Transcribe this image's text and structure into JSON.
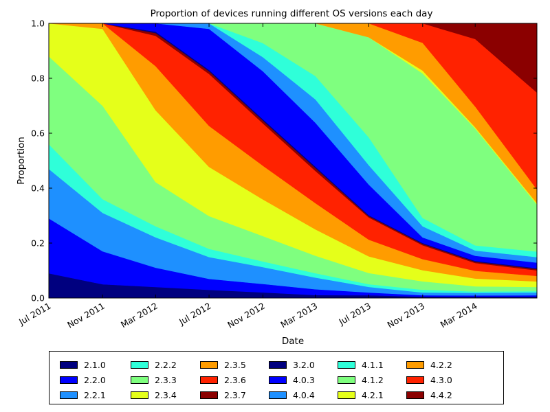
{
  "chart_data": {
    "type": "area",
    "stacked": true,
    "normalized": true,
    "title": "Proportion of devices running different OS versions each day",
    "xlabel": "Date",
    "ylabel": "Proportion",
    "ylim": [
      0,
      1.0
    ],
    "xlim": [
      "2011-07-01",
      "2014-07-20"
    ],
    "x_ticks": [
      "Jul 2011",
      "Nov 2011",
      "Mar 2012",
      "Jul 2012",
      "Nov 2012",
      "Mar 2013",
      "Jul 2013",
      "Nov 2013",
      "Mar 2014"
    ],
    "y_ticks": [
      "0.0",
      "0.2",
      "0.4",
      "0.6",
      "0.8",
      "1.0"
    ],
    "legend_position": "below",
    "x": [
      "2011-07-01",
      "2011-11-01",
      "2012-03-01",
      "2012-07-01",
      "2012-11-01",
      "2013-03-01",
      "2013-07-01",
      "2013-11-01",
      "2014-03-01",
      "2014-07-20"
    ],
    "series": [
      {
        "name": "2.1.0",
        "color": "#00007f",
        "values": [
          0.09,
          0.05,
          0.04,
          0.03,
          0.02,
          0.01,
          0.01,
          0.005,
          0.005,
          0.005
        ]
      },
      {
        "name": "2.2.0",
        "color": "#0000ff",
        "values": [
          0.2,
          0.12,
          0.07,
          0.04,
          0.03,
          0.02,
          0.01,
          0.005,
          0.005,
          0.005
        ]
      },
      {
        "name": "2.2.1",
        "color": "#1e90ff",
        "values": [
          0.18,
          0.14,
          0.11,
          0.08,
          0.06,
          0.04,
          0.02,
          0.01,
          0.01,
          0.01
        ]
      },
      {
        "name": "2.2.2",
        "color": "#2fffd9",
        "values": [
          0.09,
          0.05,
          0.04,
          0.03,
          0.02,
          0.015,
          0.01,
          0.01,
          0.005,
          0.005
        ]
      },
      {
        "name": "2.3.3",
        "color": "#7fff7f",
        "values": [
          0.32,
          0.34,
          0.16,
          0.12,
          0.09,
          0.06,
          0.04,
          0.03,
          0.02,
          0.015
        ]
      },
      {
        "name": "2.3.4",
        "color": "#e5ff1a",
        "values": [
          0.12,
          0.28,
          0.26,
          0.18,
          0.13,
          0.09,
          0.06,
          0.04,
          0.03,
          0.02
        ]
      },
      {
        "name": "2.3.5",
        "color": "#ff9c00",
        "values": [
          0.0,
          0.02,
          0.16,
          0.15,
          0.12,
          0.09,
          0.06,
          0.04,
          0.03,
          0.02
        ]
      },
      {
        "name": "2.3.6",
        "color": "#ff2200",
        "values": [
          0.0,
          0.0,
          0.11,
          0.19,
          0.15,
          0.11,
          0.08,
          0.05,
          0.03,
          0.02
        ]
      },
      {
        "name": "2.3.7",
        "color": "#8b0000",
        "values": [
          0.0,
          0.0,
          0.01,
          0.01,
          0.01,
          0.01,
          0.005,
          0.005,
          0.005,
          0.005
        ]
      },
      {
        "name": "3.2.0",
        "color": "#00007f",
        "values": [
          0.0,
          0.0,
          0.005,
          0.005,
          0.005,
          0.005,
          0.003,
          0.003,
          0.003,
          0.003
        ]
      },
      {
        "name": "4.0.3",
        "color": "#0000ff",
        "values": [
          0.0,
          0.0,
          0.03,
          0.15,
          0.17,
          0.15,
          0.11,
          0.02,
          0.02,
          0.02
        ]
      },
      {
        "name": "4.0.4",
        "color": "#1e90ff",
        "values": [
          0.0,
          0.0,
          0.0,
          0.02,
          0.05,
          0.08,
          0.07,
          0.04,
          0.02,
          0.02
        ]
      },
      {
        "name": "4.1.1",
        "color": "#2fffd9",
        "values": [
          0.0,
          0.0,
          0.0,
          0.0,
          0.05,
          0.08,
          0.1,
          0.03,
          0.02,
          0.02
        ]
      },
      {
        "name": "4.1.2",
        "color": "#7fff7f",
        "values": [
          0.0,
          0.0,
          0.0,
          0.0,
          0.07,
          0.18,
          0.36,
          0.52,
          0.45,
          0.17
        ]
      },
      {
        "name": "4.2.1",
        "color": "#e5ff1a",
        "values": [
          0.0,
          0.0,
          0.0,
          0.0,
          0.0,
          0.0,
          0.0,
          0.01,
          0.005,
          0.005
        ]
      },
      {
        "name": "4.2.2",
        "color": "#ff9c00",
        "values": [
          0.0,
          0.0,
          0.0,
          0.0,
          0.0,
          0.0,
          0.05,
          0.1,
          0.08,
          0.05
        ]
      },
      {
        "name": "4.3.0",
        "color": "#ff2200",
        "values": [
          0.0,
          0.0,
          0.0,
          0.0,
          0.0,
          0.0,
          0.0,
          0.07,
          0.26,
          0.35
        ]
      },
      {
        "name": "4.4.2",
        "color": "#8b0000",
        "values": [
          0.0,
          0.0,
          0.0,
          0.0,
          0.0,
          0.0,
          0.0,
          0.0,
          0.06,
          0.25
        ]
      }
    ]
  }
}
